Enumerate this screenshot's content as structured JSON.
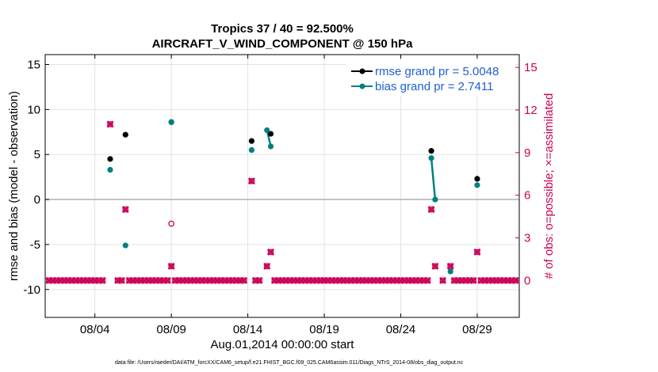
{
  "chart_data": {
    "type": "scatter",
    "title_line1": "Tropics 37 / 40 = 92.500%",
    "title_line2": "AIRCRAFT_V_WIND_COMPONENT @ 150 hPa",
    "xlabel": "Aug.01,2014 00:00:00 start",
    "ylabel_left": "rmse and bias (model - observation)",
    "ylabel_right": "# of obs: o=possible; ×=assimilated",
    "xlim": [
      0.75,
      31.75
    ],
    "ylim_left": [
      -13.1,
      16.1
    ],
    "ylim_right": [
      -2.6,
      15.9
    ],
    "x_ticks": [
      {
        "value": 4,
        "label": "08/04"
      },
      {
        "value": 9,
        "label": "08/09"
      },
      {
        "value": 14,
        "label": "08/14"
      },
      {
        "value": 19,
        "label": "08/19"
      },
      {
        "value": 24,
        "label": "08/24"
      },
      {
        "value": 29,
        "label": "08/29"
      }
    ],
    "y_ticks_left": [
      {
        "value": -10,
        "label": "-10"
      },
      {
        "value": -5,
        "label": "-5"
      },
      {
        "value": 0,
        "label": "0"
      },
      {
        "value": 5,
        "label": "5"
      },
      {
        "value": 10,
        "label": "10"
      },
      {
        "value": 15,
        "label": "15"
      }
    ],
    "y_ticks_right": [
      {
        "value": 0,
        "label": "0"
      },
      {
        "value": 3,
        "label": "3"
      },
      {
        "value": 6,
        "label": "6"
      },
      {
        "value": 9,
        "label": "9"
      },
      {
        "value": 12,
        "label": "12"
      },
      {
        "value": 15,
        "label": "15"
      }
    ],
    "grid": true,
    "legend_position": "top-right",
    "series": [
      {
        "name": "rmse grand pr = 5.0048",
        "color": "#000000",
        "points": [
          [
            5,
            4.5
          ],
          [
            6,
            7.2
          ],
          [
            9,
            8.6
          ],
          [
            14.25,
            6.5
          ],
          [
            15.5,
            7.3
          ],
          [
            26,
            5.4
          ],
          [
            29,
            2.3
          ]
        ],
        "segments": []
      },
      {
        "name": "bias grand pr = 2.7411",
        "color": "#008080",
        "points": [
          [
            5,
            3.3
          ],
          [
            6,
            -5.1
          ],
          [
            9,
            8.6
          ],
          [
            14.25,
            5.5
          ],
          [
            15.25,
            7.7
          ],
          [
            15.5,
            5.9
          ],
          [
            26,
            4.6
          ],
          [
            26.25,
            0
          ],
          [
            27.25,
            -8
          ],
          [
            29,
            1.6
          ]
        ],
        "segments": [
          [
            [
              15.25,
              7.7
            ],
            [
              15.5,
              5.9
            ]
          ],
          [
            [
              26,
              4.6
            ],
            [
              26.25,
              0
            ]
          ]
        ]
      }
    ],
    "obs_possible_color": "#cc0055",
    "obs_possible_extra": [
      [
        9,
        4
      ]
    ],
    "obs_assimilated": [
      [
        1,
        0
      ],
      [
        1.25,
        0
      ],
      [
        1.5,
        0
      ],
      [
        1.75,
        0
      ],
      [
        2,
        0
      ],
      [
        2.25,
        0
      ],
      [
        2.5,
        0
      ],
      [
        2.75,
        0
      ],
      [
        3,
        0
      ],
      [
        3.25,
        0
      ],
      [
        3.5,
        0
      ],
      [
        3.75,
        0
      ],
      [
        4,
        0
      ],
      [
        4.25,
        0
      ],
      [
        4.5,
        0
      ],
      [
        5,
        11
      ],
      [
        5.5,
        0
      ],
      [
        5.75,
        0
      ],
      [
        6,
        5
      ],
      [
        6.25,
        0
      ],
      [
        6.5,
        0
      ],
      [
        6.75,
        0
      ],
      [
        7,
        0
      ],
      [
        7.25,
        0
      ],
      [
        7.5,
        0
      ],
      [
        7.75,
        0
      ],
      [
        8,
        0
      ],
      [
        8.25,
        0
      ],
      [
        8.5,
        0
      ],
      [
        8.75,
        0
      ],
      [
        9,
        1
      ],
      [
        9.25,
        0
      ],
      [
        9.5,
        0
      ],
      [
        9.75,
        0
      ],
      [
        10,
        0
      ],
      [
        10.25,
        0
      ],
      [
        10.5,
        0
      ],
      [
        10.75,
        0
      ],
      [
        11,
        0
      ],
      [
        11.25,
        0
      ],
      [
        11.5,
        0
      ],
      [
        11.75,
        0
      ],
      [
        12,
        0
      ],
      [
        12.25,
        0
      ],
      [
        12.5,
        0
      ],
      [
        12.75,
        0
      ],
      [
        13,
        0
      ],
      [
        13.25,
        0
      ],
      [
        13.5,
        0
      ],
      [
        13.75,
        0
      ],
      [
        14.25,
        7
      ],
      [
        14.5,
        0
      ],
      [
        14.75,
        0
      ],
      [
        15.25,
        1
      ],
      [
        15.5,
        2
      ],
      [
        15.75,
        0
      ],
      [
        16,
        0
      ],
      [
        16.25,
        0
      ],
      [
        16.5,
        0
      ],
      [
        16.75,
        0
      ],
      [
        17,
        0
      ],
      [
        17.25,
        0
      ],
      [
        17.5,
        0
      ],
      [
        17.75,
        0
      ],
      [
        18,
        0
      ],
      [
        18.25,
        0
      ],
      [
        18.5,
        0
      ],
      [
        18.75,
        0
      ],
      [
        19,
        0
      ],
      [
        19.25,
        0
      ],
      [
        19.5,
        0
      ],
      [
        19.75,
        0
      ],
      [
        20,
        0
      ],
      [
        20.25,
        0
      ],
      [
        20.5,
        0
      ],
      [
        20.75,
        0
      ],
      [
        21,
        0
      ],
      [
        21.25,
        0
      ],
      [
        21.5,
        0
      ],
      [
        21.75,
        0
      ],
      [
        22,
        0
      ],
      [
        22.25,
        0
      ],
      [
        22.5,
        0
      ],
      [
        22.75,
        0
      ],
      [
        23,
        0
      ],
      [
        23.25,
        0
      ],
      [
        23.5,
        0
      ],
      [
        23.75,
        0
      ],
      [
        24,
        0
      ],
      [
        24.25,
        0
      ],
      [
        24.5,
        0
      ],
      [
        24.75,
        0
      ],
      [
        25,
        0
      ],
      [
        25.25,
        0
      ],
      [
        25.5,
        0
      ],
      [
        25.75,
        0
      ],
      [
        26,
        5
      ],
      [
        26.25,
        1
      ],
      [
        26.75,
        0
      ],
      [
        27.25,
        1
      ],
      [
        27.5,
        0
      ],
      [
        27.75,
        0
      ],
      [
        28,
        0
      ],
      [
        28.25,
        0
      ],
      [
        28.5,
        0
      ],
      [
        28.75,
        0
      ],
      [
        29,
        2
      ],
      [
        29.25,
        0
      ],
      [
        29.5,
        0
      ],
      [
        29.75,
        0
      ],
      [
        30,
        0
      ],
      [
        30.25,
        0
      ],
      [
        30.5,
        0
      ],
      [
        30.75,
        0
      ],
      [
        31,
        0
      ],
      [
        31.25,
        0
      ],
      [
        31.5,
        0
      ]
    ]
  },
  "footer": "data file: /Users/raeder/DAI/ATM_forcXX/CAM6_setup/f.e21.FHIST_BGC.f09_025.CAM6assim.011/Diags_NTrS_2014-08/obs_diag_output.nc"
}
